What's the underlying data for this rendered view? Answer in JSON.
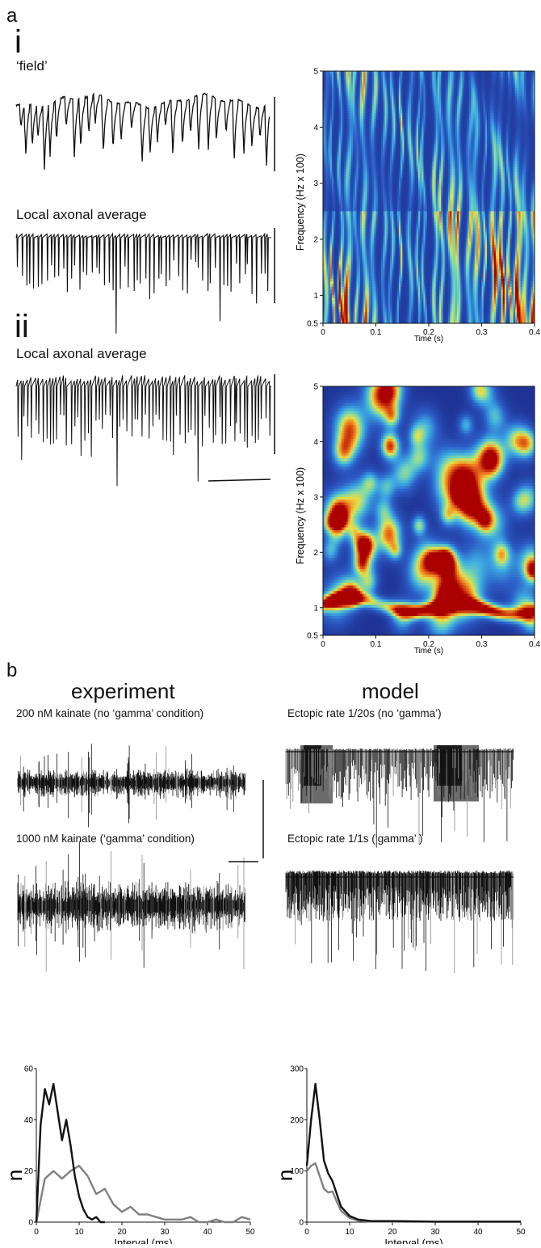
{
  "panel_a": {
    "letter": "a",
    "sub_i": "i",
    "sub_ii": "ii",
    "trace_field": "‘field’",
    "trace_axonal_i": "Local axonal average",
    "trace_axonal_ii": "Local axonal average"
  },
  "panel_b": {
    "letter": "b",
    "head_experiment": "experiment",
    "head_model": "model",
    "cond_exp_low": "200 nM kainate (no ‘gamma’ condition)",
    "cond_exp_high": "1000 nM kainate (‘gamma’ condition)",
    "cond_model_low": "Ectopic rate 1/20s (no ‘gamma’)",
    "cond_model_high": "Ectopic rate 1/1s (‘gamma’ )"
  },
  "colors": {
    "trace": "#111111",
    "gray_trace": "#808080",
    "heat_low": "#1c2a8c",
    "heat_high": "#b00000"
  },
  "chart_data": [
    {
      "type": "heatmap",
      "panel": "a-i",
      "xlabel": "Time (s)",
      "ylabel": "Frequency (Hz x 100)",
      "xlim": [
        0,
        0.4
      ],
      "ylim": [
        0.5,
        5
      ],
      "xticks": [
        "0",
        "0.1",
        "0.2",
        "0.3",
        "0.4"
      ],
      "yticks": [
        "0.5",
        "1",
        "2",
        "3",
        "4",
        "5"
      ],
      "pattern": "vertical broadband bands"
    },
    {
      "type": "heatmap",
      "panel": "a-ii",
      "xlabel": "Time (s)",
      "ylabel": "Frequency (Hz x 100)",
      "xlim": [
        0,
        0.4
      ],
      "ylim": [
        0.5,
        5
      ],
      "xticks": [
        "0",
        "0.1",
        "0.2",
        "0.3",
        "0.4"
      ],
      "yticks": [
        "0.5",
        "1",
        "2",
        "3",
        "4",
        "5"
      ],
      "pattern": "strong band near 1 (100 Hz) with patches near 2"
    },
    {
      "type": "line",
      "panel": "b-experiment",
      "xlabel": "Interval (ms)",
      "ylabel": "n",
      "xlim": [
        0,
        50
      ],
      "ylim": [
        0,
        60
      ],
      "xticks": [
        "0",
        "10",
        "20",
        "30",
        "40",
        "50"
      ],
      "yticks": [
        "0",
        "20",
        "40",
        "60"
      ],
      "series": [
        {
          "color": "#111111",
          "x": [
            0,
            1,
            2,
            3,
            4,
            5,
            6,
            7,
            8,
            9,
            10,
            11,
            12,
            13,
            14,
            15,
            16
          ],
          "values": [
            0,
            38,
            52,
            46,
            54,
            43,
            32,
            40,
            30,
            18,
            10,
            5,
            2,
            1,
            2,
            0,
            0
          ]
        },
        {
          "color": "#808080",
          "x": [
            0,
            2,
            4,
            6,
            8,
            10,
            12,
            14,
            16,
            18,
            20,
            22,
            24,
            26,
            28,
            30,
            32,
            34,
            36,
            38,
            40,
            42,
            44,
            46,
            48,
            50
          ],
          "values": [
            0,
            17,
            20,
            17,
            20,
            22,
            18,
            11,
            13,
            7,
            4,
            6,
            3,
            3,
            2,
            1,
            1,
            1,
            2,
            0,
            0,
            1,
            0,
            0,
            2,
            1
          ]
        }
      ]
    },
    {
      "type": "line",
      "panel": "b-model",
      "xlabel": "Interval (ms)",
      "ylabel": "n",
      "xlim": [
        0,
        50
      ],
      "ylim": [
        0,
        300
      ],
      "xticks": [
        "0",
        "10",
        "20",
        "30",
        "40",
        "50"
      ],
      "yticks": [
        "0",
        "100",
        "200",
        "300"
      ],
      "series": [
        {
          "color": "#111111",
          "x": [
            0,
            1,
            2,
            3,
            4,
            5,
            6,
            7,
            8,
            10,
            12,
            15,
            20,
            30,
            40,
            50
          ],
          "values": [
            110,
            200,
            270,
            200,
            120,
            95,
            80,
            55,
            30,
            12,
            5,
            2,
            2,
            1,
            1,
            1
          ]
        },
        {
          "color": "#808080",
          "x": [
            0,
            1,
            2,
            3,
            4,
            5,
            6,
            7,
            8,
            10,
            12,
            15,
            20,
            30,
            40,
            50
          ],
          "values": [
            100,
            110,
            115,
            90,
            65,
            58,
            60,
            40,
            22,
            8,
            3,
            1,
            1,
            1,
            1,
            1
          ]
        }
      ]
    }
  ]
}
